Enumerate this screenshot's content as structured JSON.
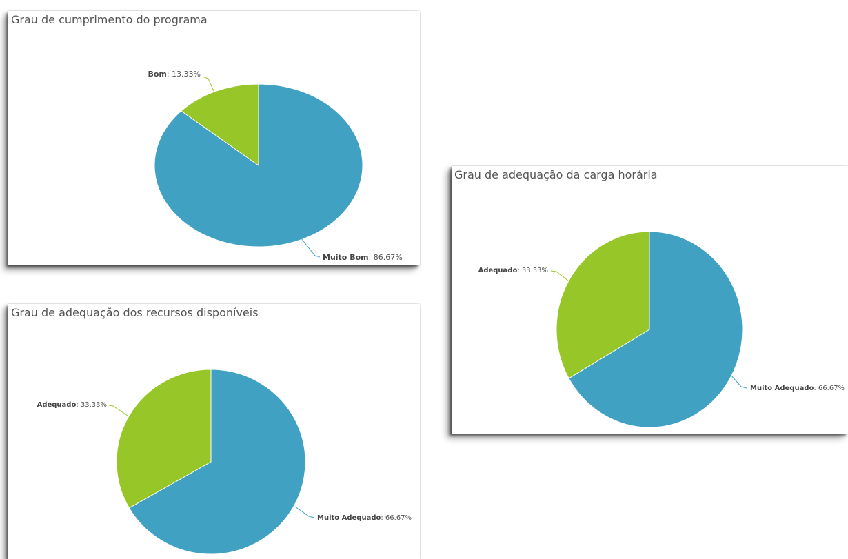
{
  "chart_data": [
    {
      "type": "pie",
      "title": "Grau de cumprimento do programa",
      "slices": [
        {
          "label": "Muito Bom",
          "value": 86.67,
          "value_label": "86.67%",
          "color": "#40a1c2"
        },
        {
          "label": "Bom",
          "value": 13.33,
          "value_label": "13.33%",
          "color": "#97c628"
        }
      ]
    },
    {
      "type": "pie",
      "title": "Grau de adequação da carga horária",
      "slices": [
        {
          "label": "Muito Adequado",
          "value": 66.67,
          "value_label": "66.67%",
          "color": "#40a1c2"
        },
        {
          "label": "Adequado",
          "value": 33.33,
          "value_label": "33.33%",
          "color": "#97c628"
        }
      ]
    },
    {
      "type": "pie",
      "title": "Grau de adequação dos recursos disponíveis",
      "slices": [
        {
          "label": "Muito Adequado",
          "value": 66.67,
          "value_label": "66.67%",
          "color": "#40a1c2"
        },
        {
          "label": "Adequado",
          "value": 33.33,
          "value_label": "33.33%",
          "color": "#97c628"
        }
      ]
    }
  ]
}
